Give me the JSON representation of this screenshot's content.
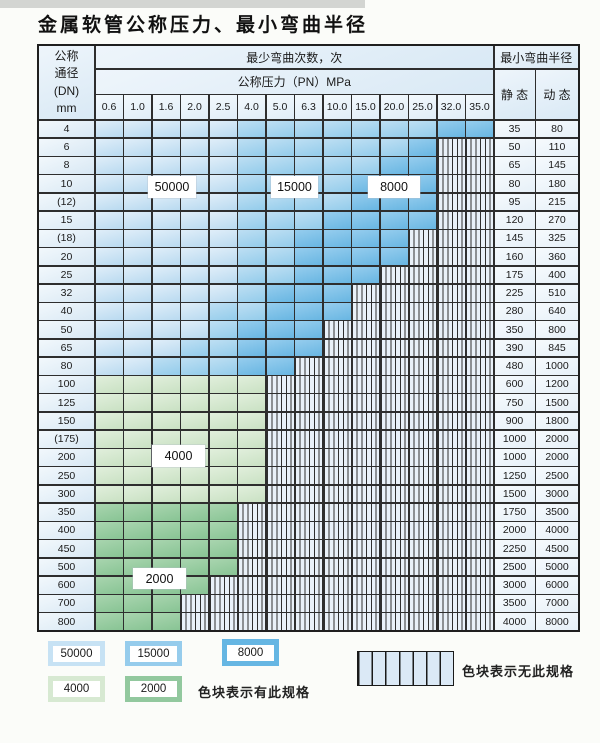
{
  "title": "金属软管公称压力、最小弯曲半径",
  "table": {
    "header": {
      "dn": [
        "公称",
        "通径",
        "(DN)",
        "mm"
      ],
      "bend_cycles": "最少弯曲次数，次",
      "pressure": "公称压力（PN）MPa",
      "radius": "最小弯曲半径",
      "static": "静 态",
      "dynamic": "动 态"
    },
    "pressure_columns": [
      "0.6",
      "1.0",
      "1.6",
      "2.0",
      "2.5",
      "4.0",
      "5.0",
      "6.3",
      "10.0",
      "15.0",
      "20.0",
      "25.0",
      "32.0",
      "35.0"
    ],
    "zone_key": {
      "A": "50000",
      "B": "15000",
      "C": "8000",
      "D": "4000",
      "E": "2000",
      "X": "no-spec"
    },
    "rows": [
      {
        "dn": "4",
        "zones": "AAAAABBBBBBBCC",
        "static": "35",
        "dynamic": "80"
      },
      {
        "dn": "6",
        "zones": "AAAAABBBBBBCXX",
        "static": "50",
        "dynamic": "110"
      },
      {
        "dn": "8",
        "zones": "AAAAABBBBBCCXX",
        "static": "65",
        "dynamic": "145"
      },
      {
        "dn": "10",
        "zones": "AAAAABBBBCCCXX",
        "static": "80",
        "dynamic": "180"
      },
      {
        "dn": "(12)",
        "zones": "AAAAABBBBCCCXX",
        "static": "95",
        "dynamic": "215"
      },
      {
        "dn": "15",
        "zones": "AAAAABBBCCCCXX",
        "static": "120",
        "dynamic": "270"
      },
      {
        "dn": "(18)",
        "zones": "AAAAABBCCCCXXX",
        "static": "145",
        "dynamic": "325"
      },
      {
        "dn": "20",
        "zones": "AAAAABBCCCCXXX",
        "static": "160",
        "dynamic": "360"
      },
      {
        "dn": "25",
        "zones": "AAAAABBCCCXXXX",
        "static": "175",
        "dynamic": "400"
      },
      {
        "dn": "32",
        "zones": "AAAAABCCCXXXXX",
        "static": "225",
        "dynamic": "510"
      },
      {
        "dn": "40",
        "zones": "AAAABBCCCXXXXX",
        "static": "280",
        "dynamic": "640"
      },
      {
        "dn": "50",
        "zones": "AAAABCCCXXXXXX",
        "static": "350",
        "dynamic": "800"
      },
      {
        "dn": "65",
        "zones": "AAABBCCCXXXXXX",
        "static": "390",
        "dynamic": "845"
      },
      {
        "dn": "80",
        "zones": "AABBBCCXXXXXXX",
        "static": "480",
        "dynamic": "1000"
      },
      {
        "dn": "100",
        "zones": "DDDDDDXXXXXXXX",
        "static": "600",
        "dynamic": "1200"
      },
      {
        "dn": "125",
        "zones": "DDDDDDXXXXXXXX",
        "static": "750",
        "dynamic": "1500"
      },
      {
        "dn": "150",
        "zones": "DDDDDDXXXXXXXX",
        "static": "900",
        "dynamic": "1800"
      },
      {
        "dn": "(175)",
        "zones": "DDDDDDXXXXXXXX",
        "static": "1000",
        "dynamic": "2000"
      },
      {
        "dn": "200",
        "zones": "DDDDDDXXXXXXXX",
        "static": "1000",
        "dynamic": "2000"
      },
      {
        "dn": "250",
        "zones": "DDDDDDXXXXXXXX",
        "static": "1250",
        "dynamic": "2500"
      },
      {
        "dn": "300",
        "zones": "DDDDDDXXXXXXXX",
        "static": "1500",
        "dynamic": "3000"
      },
      {
        "dn": "350",
        "zones": "EEEEEXXXXXXXXX",
        "static": "1750",
        "dynamic": "3500"
      },
      {
        "dn": "400",
        "zones": "EEEEEXXXXXXXXX",
        "static": "2000",
        "dynamic": "4000"
      },
      {
        "dn": "450",
        "zones": "EEEEEXXXXXXXXX",
        "static": "2250",
        "dynamic": "4500"
      },
      {
        "dn": "500",
        "zones": "EEEEEXXXXXXXXX",
        "static": "2500",
        "dynamic": "5000"
      },
      {
        "dn": "600",
        "zones": "EEEEXXXXXXXXXX",
        "static": "3000",
        "dynamic": "6000"
      },
      {
        "dn": "700",
        "zones": "EEEXXXXXXXXXXX",
        "static": "3500",
        "dynamic": "7000"
      },
      {
        "dn": "800",
        "zones": "EEEXXXXXXXXXXX",
        "static": "4000",
        "dynamic": "8000"
      }
    ]
  },
  "legend": {
    "items": [
      {
        "cycles": "50000",
        "zone": "A"
      },
      {
        "cycles": "15000",
        "zone": "B"
      },
      {
        "cycles": "8000",
        "zone": "C"
      },
      {
        "cycles": "4000",
        "zone": "D"
      },
      {
        "cycles": "2000",
        "zone": "E"
      }
    ],
    "has_spec": "色块表示有此规格",
    "no_spec": "色块表示无此规格"
  },
  "colors": {
    "c50000": "#c7e2f4",
    "c15000": "#96ccec",
    "c8000": "#66b6e3",
    "c4000": "#d7e9d2",
    "c2000": "#92c89e",
    "hatch_bg": "#e9f1f9",
    "grid_line": "#2e2e2e"
  }
}
